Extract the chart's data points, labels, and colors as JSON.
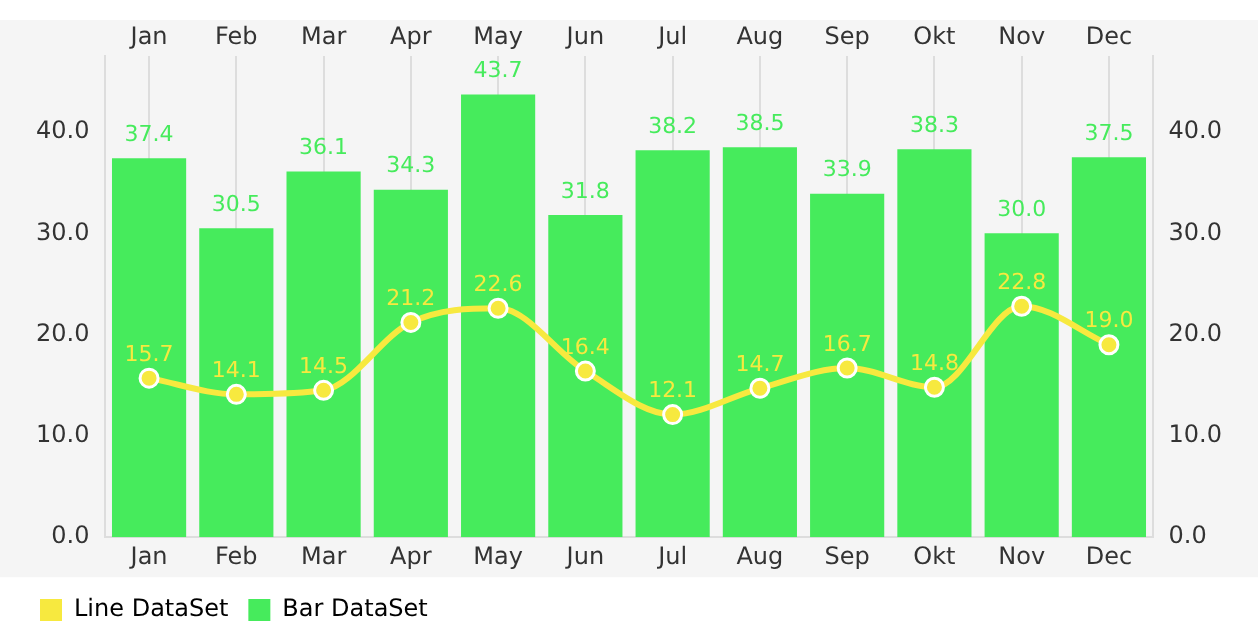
{
  "chart_data": {
    "type": "bar",
    "categories": [
      "Jan",
      "Feb",
      "Mar",
      "Apr",
      "May",
      "Jun",
      "Jul",
      "Aug",
      "Sep",
      "Okt",
      "Nov",
      "Dec"
    ],
    "series": [
      {
        "name": "Line DataSet",
        "type": "line",
        "color": "#f7e93f",
        "values": [
          15.7,
          14.1,
          14.5,
          21.2,
          22.6,
          16.4,
          12.1,
          14.7,
          16.7,
          14.8,
          22.8,
          19.0
        ],
        "value_labels": [
          "15.7",
          "14.1",
          "14.5",
          "21.2",
          "22.6",
          "16.4",
          "12.1",
          "14.7",
          "16.7",
          "14.8",
          "22.8",
          "19.0"
        ]
      },
      {
        "name": "Bar DataSet",
        "color": "#46eb5c",
        "values": [
          37.4,
          30.5,
          36.1,
          34.3,
          43.7,
          31.8,
          38.2,
          38.5,
          33.9,
          38.3,
          30.0,
          37.5
        ],
        "value_labels": [
          "37.4",
          "30.5",
          "36.1",
          "34.3",
          "43.7",
          "31.8",
          "38.2",
          "38.5",
          "33.9",
          "38.3",
          "30.0",
          "37.5"
        ]
      }
    ],
    "ylim": [
      0,
      47.5
    ],
    "yticks": [
      {
        "value": 0,
        "label": "0.0"
      },
      {
        "value": 10,
        "label": "10.0"
      },
      {
        "value": 20,
        "label": "20.0"
      },
      {
        "value": 30,
        "label": "30.0"
      },
      {
        "value": 40,
        "label": "40.0"
      }
    ],
    "y2lim": [
      0,
      47.5
    ],
    "y2ticks": [
      {
        "value": 0,
        "label": "0.0"
      },
      {
        "value": 10,
        "label": "10.0"
      },
      {
        "value": 20,
        "label": "20.0"
      },
      {
        "value": 30,
        "label": "30.0"
      },
      {
        "value": 40,
        "label": "40.0"
      }
    ],
    "grid": "x",
    "legend": "bottom left",
    "marker": "circle",
    "line_style": "solid"
  }
}
